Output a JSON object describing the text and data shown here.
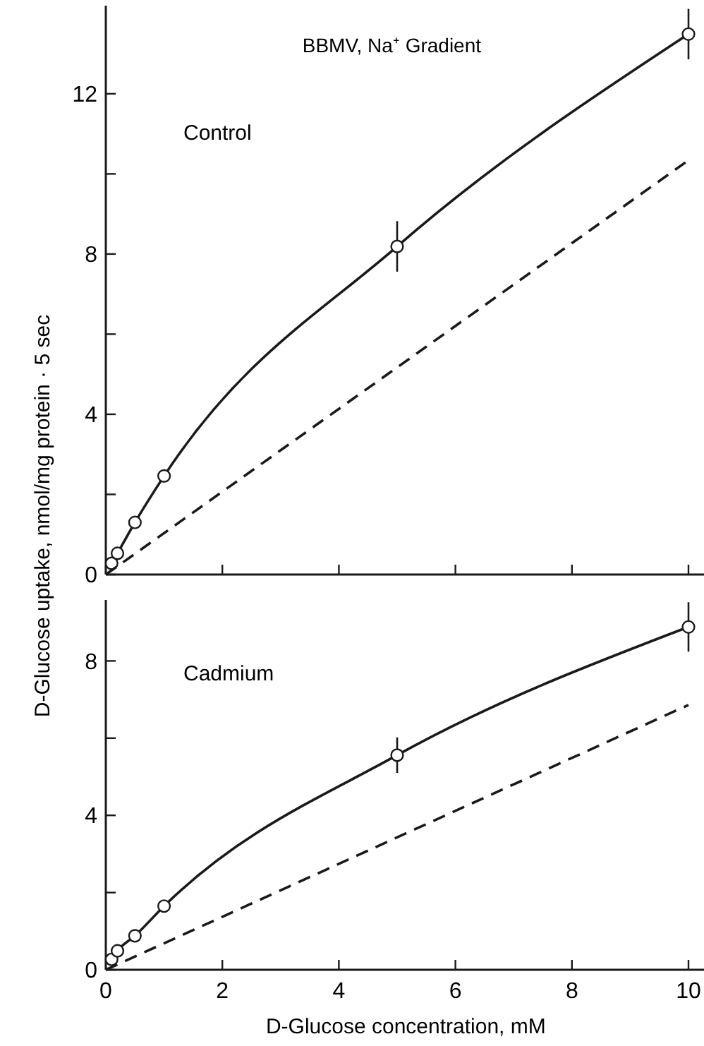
{
  "chart_data": [
    {
      "type": "line",
      "title": "BBMV, Na⁺ Gradient",
      "ylabel": "D-Glucose uptake, nmol/mg protein · 5 sec",
      "annotations": [
        "Control"
      ],
      "xlim": [
        0,
        10.3
      ],
      "xticks": [
        {
          "value": 0,
          "label": null
        },
        {
          "value": 2,
          "label": null
        },
        {
          "value": 4,
          "label": null
        },
        {
          "value": 6,
          "label": null
        },
        {
          "value": 8,
          "label": null
        },
        {
          "value": 10,
          "label": null
        }
      ],
      "ylim": [
        0,
        14.2
      ],
      "yticks": [
        0,
        {
          "value": 2,
          "label": null
        },
        4,
        {
          "value": 6,
          "label": null
        },
        8,
        {
          "value": 10,
          "label": null
        },
        12
      ],
      "tick_labels": "y",
      "series": [
        {
          "color": "#1a1a1a",
          "marker": "circle",
          "line_style": "solid",
          "x": [
            0.1,
            0.2,
            0.5,
            1,
            5,
            10
          ],
          "values": [
            0.28,
            0.53,
            1.3,
            2.46,
            8.19,
            13.49
          ],
          "errors": [
            null,
            null,
            null,
            null,
            0.63,
            0.63
          ]
        },
        {
          "color": "#1a1a1a",
          "marker": "none",
          "line_style": "dashed",
          "x": [
            0,
            10
          ],
          "values": [
            0,
            10.34
          ]
        }
      ]
    },
    {
      "type": "line",
      "xlabel": "D-Glucose concentration, mM",
      "annotations": [
        "Cadmium"
      ],
      "xlim": [
        0,
        10.3
      ],
      "xticks": [
        0,
        2,
        4,
        6,
        8,
        10
      ],
      "ylim": [
        0,
        9.58
      ],
      "yticks": [
        0,
        {
          "value": 2,
          "label": null
        },
        4,
        {
          "value": 6,
          "label": null
        },
        8
      ],
      "series": [
        {
          "color": "#1a1a1a",
          "marker": "circle",
          "line_style": "solid",
          "x": [
            0.1,
            0.2,
            0.5,
            1,
            5,
            10
          ],
          "values": [
            0.27,
            0.49,
            0.88,
            1.65,
            5.56,
            8.88
          ],
          "errors": [
            null,
            null,
            null,
            null,
            0.46,
            0.64
          ]
        },
        {
          "color": "#1a1a1a",
          "marker": "none",
          "line_style": "dashed",
          "x": [
            0,
            10
          ],
          "values": [
            0,
            6.86
          ]
        }
      ]
    }
  ]
}
